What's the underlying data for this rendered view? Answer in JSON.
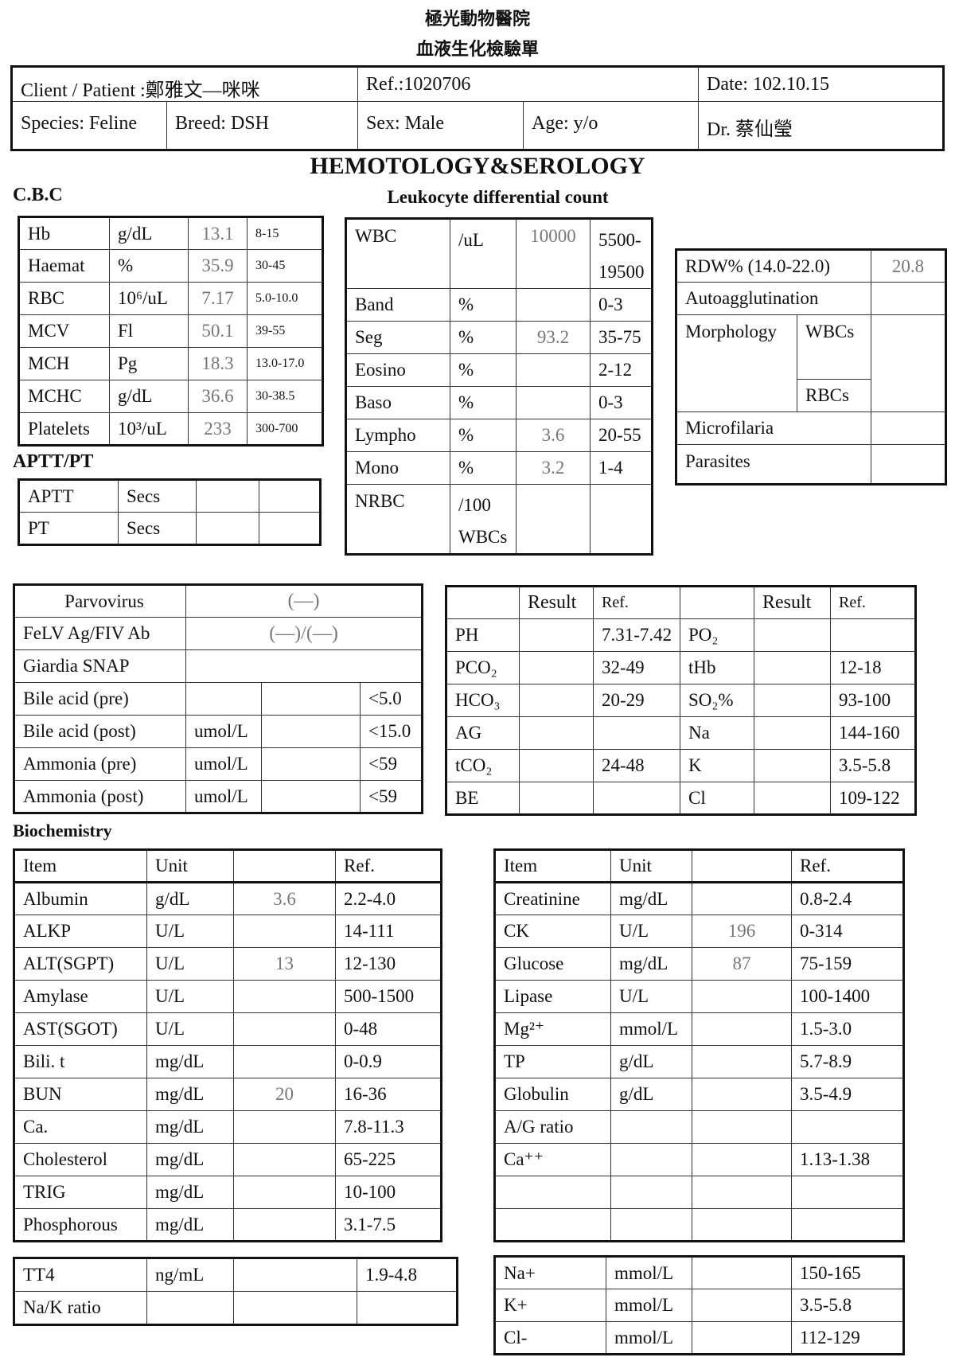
{
  "header": {
    "hospital": "極光動物醫院",
    "form_title": "血液生化檢驗單",
    "client_patient": "Client / Patient :鄭雅文—咪咪",
    "ref": "Ref.:1020706",
    "date": "Date: 102.10.15",
    "species": "Species: Feline",
    "breed": "Breed: DSH",
    "sex": "Sex: Male",
    "age": "Age: y/o",
    "doctor": "Dr.  蔡仙瑩"
  },
  "sections": {
    "main_title": "HEMOTOLOGY&SEROLOGY",
    "cbc": "C.B.C",
    "leukocyte": "Leukocyte differential count",
    "aptt_pt": "APTT/PT",
    "biochemistry": "Biochemistry"
  },
  "cbc": {
    "rows": [
      [
        "Hb",
        "g/dL",
        "13.1",
        "8-15"
      ],
      [
        "Haemat",
        "%",
        "35.9",
        "30-45"
      ],
      [
        "RBC",
        "10⁶/uL",
        "7.17",
        "5.0-10.0"
      ],
      [
        "MCV",
        "Fl",
        "50.1",
        "39-55"
      ],
      [
        "MCH",
        "Pg",
        "18.3",
        "13.0-17.0"
      ],
      [
        "MCHC",
        "g/dL",
        "36.6",
        "30-38.5"
      ],
      [
        "Platelets",
        "10³/uL",
        "233",
        "300-700"
      ]
    ]
  },
  "aptt": {
    "rows": [
      [
        "APTT",
        "Secs",
        "",
        ""
      ],
      [
        "PT",
        "Secs",
        "",
        ""
      ]
    ]
  },
  "leukocyte": {
    "rows": [
      [
        "WBC",
        "/uL",
        "10000",
        "5500-\n19500"
      ],
      [
        "Band",
        "%",
        "",
        "0-3"
      ],
      [
        "Seg",
        "%",
        "93.2",
        "35-75"
      ],
      [
        "Eosino",
        "%",
        "",
        "2-12"
      ],
      [
        "Baso",
        "%",
        "",
        "0-3"
      ],
      [
        "Lympho",
        "%",
        "3.6",
        "20-55"
      ],
      [
        "Mono",
        "%",
        "3.2",
        "1-4"
      ],
      [
        "NRBC",
        "/100\nWBCs",
        "",
        ""
      ]
    ]
  },
  "morphology": {
    "rdw_label": "RDW% (14.0-22.0)",
    "rdw_value": "20.8",
    "autoagglutination": "Autoagglutination",
    "morphology": "Morphology",
    "wbcs": "WBCs",
    "rbcs": "RBCs",
    "microfilaria": "Microfilaria",
    "parasites": "Parasites"
  },
  "serology": {
    "rows": [
      [
        "Parvovirus",
        "(—)"
      ],
      [
        "FeLV Ag/FIV Ab",
        "(—)/(—)"
      ],
      [
        "Giardia SNAP",
        ""
      ],
      [
        "Bile acid (pre)",
        "",
        "",
        "<5.0"
      ],
      [
        "Bile acid (post)",
        "umol/L",
        "",
        "<15.0"
      ],
      [
        "Ammonia (pre)",
        "umol/L",
        "",
        "<59"
      ],
      [
        "Ammonia (post)",
        "umol/L",
        "",
        "<59"
      ]
    ]
  },
  "blood_gas": {
    "rows": [
      [
        "",
        "Result",
        "Ref.",
        "",
        "Result",
        "Ref."
      ],
      [
        "PH",
        "",
        "7.31-7.42",
        "PO₂",
        "",
        ""
      ],
      [
        "PCO₂",
        "",
        "32-49",
        "tHb",
        "",
        "12-18"
      ],
      [
        "HCO₃",
        "",
        "20-29",
        "SO₂%",
        "",
        "93-100"
      ],
      [
        "AG",
        "",
        "",
        "Na",
        "",
        "144-160"
      ],
      [
        "tCO₂",
        "",
        "24-48",
        "K",
        "",
        "3.5-5.8"
      ],
      [
        "BE",
        "",
        "",
        "Cl",
        "",
        "109-122"
      ]
    ]
  },
  "biochem_left": {
    "rows": [
      [
        "Item",
        "Unit",
        "",
        "Ref."
      ],
      [
        "Albumin",
        "g/dL",
        "3.6",
        "2.2-4.0"
      ],
      [
        "ALKP",
        "U/L",
        "",
        "14-111"
      ],
      [
        "ALT(SGPT)",
        "U/L",
        "13",
        "12-130"
      ],
      [
        "Amylase",
        "U/L",
        "",
        "500-1500"
      ],
      [
        "AST(SGOT)",
        "U/L",
        "",
        "0-48"
      ],
      [
        "Bili. t",
        "mg/dL",
        "",
        "0-0.9"
      ],
      [
        "BUN",
        "mg/dL",
        "20",
        "16-36"
      ],
      [
        "Ca.",
        "mg/dL",
        "",
        "7.8-11.3"
      ],
      [
        "Cholesterol",
        "mg/dL",
        "",
        "65-225"
      ],
      [
        "TRIG",
        "mg/dL",
        "",
        "10-100"
      ],
      [
        "Phosphorous",
        "mg/dL",
        "",
        "3.1-7.5"
      ]
    ]
  },
  "biochem_right": {
    "rows": [
      [
        "Item",
        "Unit",
        "",
        "Ref."
      ],
      [
        "Creatinine",
        "mg/dL",
        "",
        "0.8-2.4"
      ],
      [
        "CK",
        "U/L",
        "196",
        "0-314"
      ],
      [
        "Glucose",
        "mg/dL",
        "87",
        "75-159"
      ],
      [
        "Lipase",
        "U/L",
        "",
        "100-1400"
      ],
      [
        "Mg²⁺",
        "mmol/L",
        "",
        "1.5-3.0"
      ],
      [
        "TP",
        "g/dL",
        "",
        "5.7-8.9"
      ],
      [
        "Globulin",
        "g/dL",
        "",
        "3.5-4.9"
      ],
      [
        "A/G ratio",
        "",
        "",
        ""
      ],
      [
        "Ca⁺⁺",
        "",
        "",
        "1.13-1.38"
      ],
      [
        "",
        "",
        "",
        ""
      ],
      [
        "",
        "",
        "",
        ""
      ]
    ]
  },
  "thyroid": {
    "rows": [
      [
        "TT4",
        "ng/mL",
        "",
        "1.9-4.8"
      ],
      [
        "Na/K ratio",
        "",
        "",
        ""
      ]
    ]
  },
  "electrolytes": {
    "rows": [
      [
        "Na+",
        "mmol/L",
        "",
        "150-165"
      ],
      [
        "K+",
        "mmol/L",
        "",
        "3.5-5.8"
      ],
      [
        "Cl-",
        "mmol/L",
        "",
        "112-129"
      ]
    ]
  }
}
